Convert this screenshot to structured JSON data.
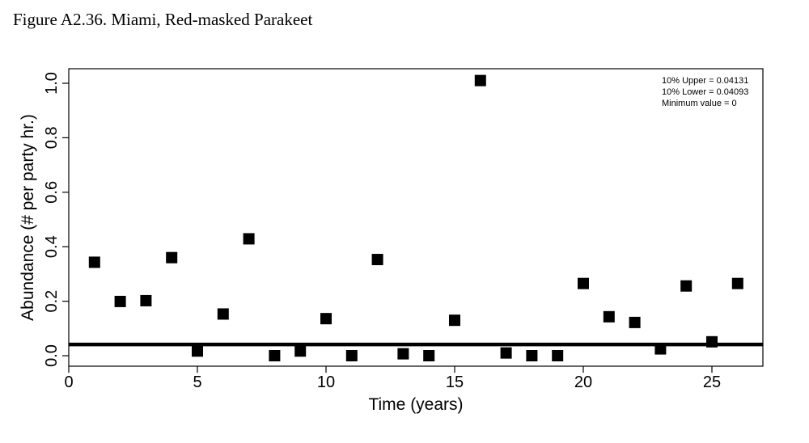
{
  "figure": {
    "title": "Figure A2.36. Miami, Red-masked Parakeet"
  },
  "chart_data": {
    "type": "scatter",
    "xlabel": "Time (years)",
    "ylabel": "Abundance (# per party hr.)",
    "xlim": [
      0,
      27
    ],
    "ylim": [
      0,
      1.0
    ],
    "x_ticks": [
      0,
      5,
      10,
      15,
      20,
      25
    ],
    "y_ticks": [
      0.0,
      0.2,
      0.4,
      0.6,
      0.8,
      1.0
    ],
    "x_tick_labels": [
      "0",
      "5",
      "10",
      "15",
      "20",
      "25"
    ],
    "y_tick_labels": [
      "0.0",
      "0.2",
      "0.4",
      "0.6",
      "0.8",
      "1.0"
    ],
    "grid": false,
    "marker": "filled-square",
    "marker_color": "#000000",
    "x": [
      1,
      2,
      3,
      4,
      5,
      6,
      7,
      8,
      9,
      10,
      11,
      12,
      13,
      14,
      15,
      16,
      17,
      18,
      19,
      20,
      21,
      22,
      23,
      24,
      25,
      26
    ],
    "y": [
      0.343,
      0.199,
      0.202,
      0.36,
      0.017,
      0.153,
      0.429,
      0.0,
      0.017,
      0.136,
      0.0,
      0.353,
      0.007,
      0.0,
      0.13,
      1.01,
      0.01,
      0.0,
      0.0,
      0.265,
      0.143,
      0.122,
      0.025,
      0.256,
      0.051,
      0.265
    ],
    "reference_line": {
      "y": 0.04131,
      "color": "#000000"
    },
    "annotations": [
      "10% Upper = 0.04131",
      "10% Lower = 0.04093",
      "Minimum value = 0"
    ]
  }
}
